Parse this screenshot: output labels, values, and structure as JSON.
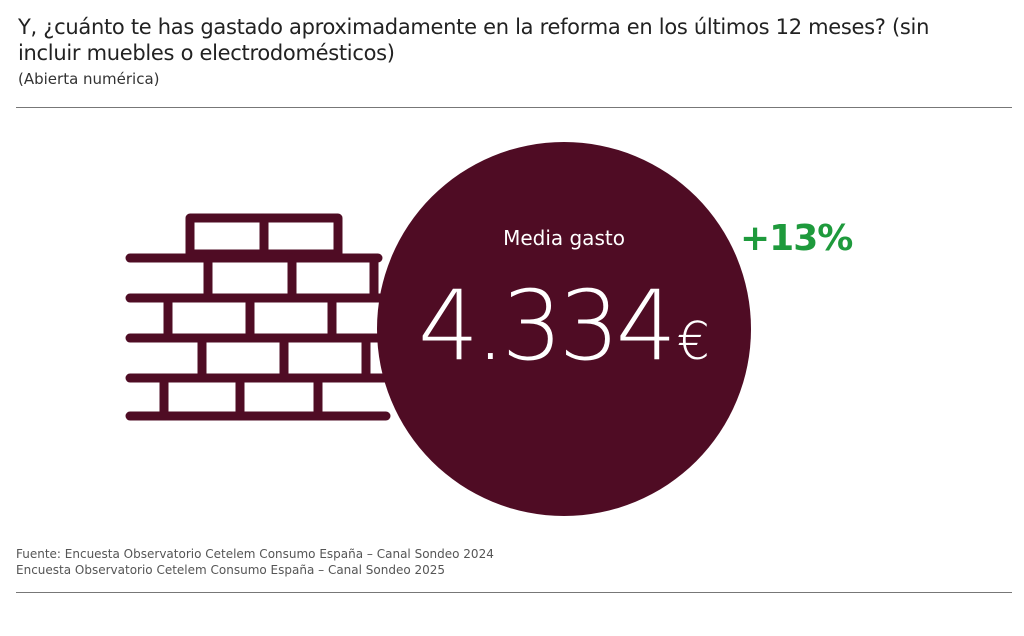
{
  "header": {
    "title": "Y, ¿cuánto te has gastado aproximadamente en la reforma en los últimos 12 meses? (sin incluir muebles o electrodomésticos)",
    "subtitle": "(Abierta numérica)"
  },
  "illustration": {
    "icon": "brick-wall-icon",
    "color": "#4f0c24"
  },
  "metric": {
    "label": "Media gasto",
    "value": "4.334",
    "currency": "€",
    "change": "+13%",
    "circle_color": "#4f0c24",
    "change_color": "#1e9a3c"
  },
  "footer": {
    "source_line1": "Fuente: Encuesta Observatorio Cetelem Consumo España – Canal Sondeo 2024",
    "source_line2": "Encuesta Observatorio Cetelem Consumo España – Canal Sondeo 2025"
  }
}
